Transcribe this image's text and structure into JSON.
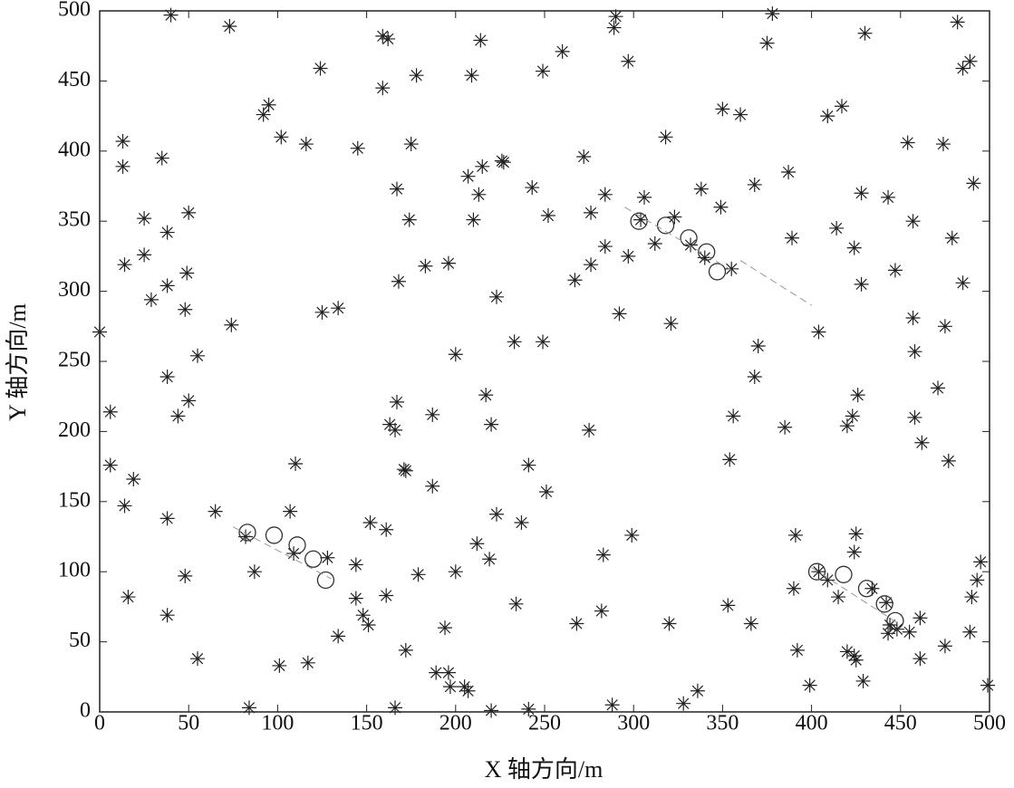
{
  "chart_data": {
    "type": "scatter",
    "xlabel": "X 轴方向/m",
    "ylabel": "Y 轴方向/m",
    "xlim": [
      0,
      500
    ],
    "ylim": [
      0,
      500
    ],
    "xticks": [
      0,
      50,
      100,
      150,
      200,
      250,
      300,
      350,
      400,
      450,
      500
    ],
    "yticks": [
      0,
      50,
      100,
      150,
      200,
      250,
      300,
      350,
      400,
      450,
      500
    ],
    "grid": false,
    "series": [
      {
        "marker": "star",
        "color": "#222222",
        "x": [
          40,
          73,
          95,
          92,
          102,
          116,
          124,
          145,
          159,
          162,
          159,
          178,
          175,
          167,
          174,
          168,
          183,
          196,
          209,
          214,
          249,
          260,
          289,
          290,
          297,
          272,
          207,
          215,
          226,
          227,
          213,
          210,
          243,
          252,
          223,
          233,
          249,
          276,
          284,
          306,
          304,
          284,
          297,
          276,
          267,
          292,
          312,
          323,
          318,
          332,
          338,
          340,
          349,
          350,
          360,
          355,
          368,
          375,
          378,
          387,
          389,
          409,
          417,
          414,
          424,
          428,
          428,
          430,
          443,
          447,
          454,
          457,
          457,
          458,
          474,
          475,
          479,
          482,
          485,
          485,
          489,
          491,
          404,
          370,
          368,
          356,
          354,
          385,
          321,
          0,
          13,
          13,
          14,
          25,
          25,
          35,
          38,
          38,
          29,
          48,
          49,
          50,
          55,
          74,
          125,
          134,
          38,
          44,
          50,
          6,
          6,
          19,
          14,
          16,
          38,
          38,
          48,
          55,
          65,
          82,
          87,
          84,
          109,
          110,
          107,
          101,
          117,
          128,
          144,
          144,
          148,
          151,
          152,
          134,
          161,
          161,
          163,
          166,
          167,
          171,
          172,
          172,
          166,
          179,
          187,
          187,
          194,
          189,
          196,
          197,
          205,
          207,
          200,
          200,
          212,
          219,
          220,
          217,
          223,
          220,
          241,
          241,
          234,
          237,
          251,
          268,
          275,
          282,
          283,
          288,
          299,
          320,
          328,
          336,
          353,
          366,
          390,
          391,
          392,
          399,
          404,
          409,
          415,
          420,
          424,
          425,
          423,
          420,
          426,
          424,
          425,
          429,
          434,
          442,
          443,
          444,
          448,
          455,
          461,
          461,
          458,
          462,
          471,
          475,
          477,
          489,
          490,
          493,
          495,
          499
        ],
        "y": [
          497,
          489,
          433,
          426,
          410,
          405,
          459,
          402,
          482,
          480,
          445,
          454,
          405,
          373,
          351,
          307,
          318,
          320,
          454,
          479,
          457,
          471,
          488,
          496,
          464,
          396,
          382,
          389,
          393,
          392,
          369,
          351,
          374,
          354,
          296,
          264,
          264,
          356,
          369,
          367,
          351,
          332,
          325,
          319,
          308,
          284,
          334,
          353,
          410,
          333,
          373,
          324,
          360,
          430,
          426,
          316,
          376,
          477,
          498,
          385,
          338,
          425,
          432,
          345,
          331,
          370,
          305,
          484,
          367,
          315,
          406,
          350,
          281,
          257,
          405,
          275,
          338,
          492,
          459,
          306,
          464,
          377,
          271,
          261,
          239,
          211,
          180,
          203,
          277,
          271,
          407,
          389,
          319,
          352,
          326,
          395,
          342,
          304,
          294,
          287,
          313,
          356,
          254,
          276,
          285,
          288,
          239,
          211,
          222,
          214,
          176,
          166,
          147,
          82,
          138,
          69,
          97,
          38,
          143,
          125,
          100,
          3,
          113,
          177,
          143,
          33,
          35,
          110,
          105,
          81,
          69,
          62,
          135,
          54,
          130,
          83,
          205,
          201,
          221,
          173,
          172,
          44,
          3,
          98,
          212,
          161,
          60,
          28,
          28,
          18,
          18,
          15,
          100,
          255,
          120,
          109,
          205,
          226,
          141,
          1,
          176,
          2,
          77,
          135,
          157,
          63,
          201,
          72,
          112,
          5,
          126,
          63,
          6,
          15,
          76,
          63,
          88,
          126,
          44,
          19,
          100,
          94,
          82,
          43,
          40,
          37,
          211,
          204,
          226,
          114,
          127,
          22,
          88,
          78,
          56,
          62,
          59,
          57,
          67,
          38,
          210,
          192,
          231,
          47,
          179,
          57,
          82,
          94,
          107,
          19
        ]
      },
      {
        "marker": "circle",
        "color": "#333333",
        "x": [
          83,
          98,
          111,
          120,
          127,
          303,
          318,
          331,
          341,
          347,
          403,
          418,
          431,
          441,
          447
        ],
        "y": [
          128,
          126,
          119,
          109,
          94,
          350,
          347,
          338,
          328,
          314,
          100,
          98,
          88,
          77,
          65
        ]
      },
      {
        "marker": "dashed-line",
        "color": "#999999",
        "x": [
          75,
          130,
          null,
          295,
          355,
          null,
          360,
          400,
          null,
          400,
          450
        ],
        "y": [
          132,
          95,
          null,
          360,
          315,
          null,
          322,
          290,
          null,
          103,
          62
        ]
      }
    ]
  }
}
